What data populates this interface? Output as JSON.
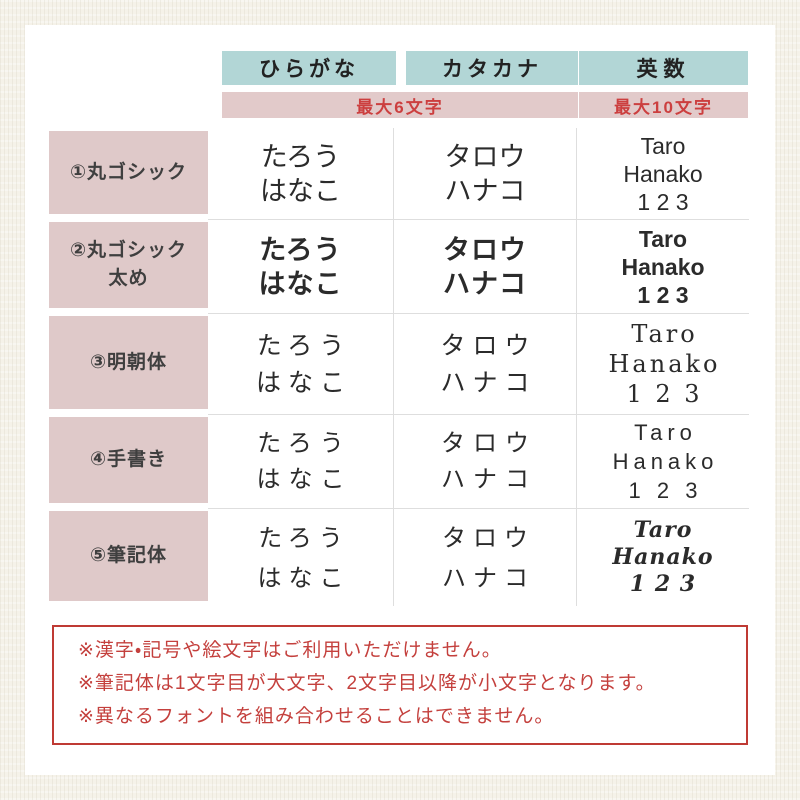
{
  "colors": {
    "frame_background": "#f5f2e9",
    "card_background": "#ffffff",
    "header_blue": "#b2d6d6",
    "limit_band_pink": "#e2caca",
    "row_label_pink": "#dfc9c9",
    "accent_red": "#c4403d",
    "grid_line": "#dedede"
  },
  "table": {
    "column_headers": [
      "ひらがな",
      "カタカナ",
      "英数"
    ],
    "limit_kana": "最大6文字",
    "limit_alnum": "最大10文字",
    "rows": [
      {
        "label": "①丸ゴシック",
        "hiragana1": "たろう",
        "hiragana2": "はなこ",
        "katakana1": "タロウ",
        "katakana2": "ハナコ",
        "latin1": "Taro",
        "latin2": "Hanako",
        "latin3": "1 2 3"
      },
      {
        "label": "②丸ゴシック",
        "label_line2": "太め",
        "hiragana1": "たろう",
        "hiragana2": "はなこ",
        "katakana1": "タロウ",
        "katakana2": "ハナコ",
        "latin1": "Taro",
        "latin2": "Hanako",
        "latin3": "1 2 3"
      },
      {
        "label": "③明朝体",
        "hiragana1": "たろう",
        "hiragana2": "はなこ",
        "katakana1": "タロウ",
        "katakana2": "ハナコ",
        "latin1": "Taro",
        "latin2": "Hanako",
        "latin3": "1 2 3"
      },
      {
        "label": "④手書き",
        "hiragana1": "たろう",
        "hiragana2": "はなこ",
        "katakana1": "タロウ",
        "katakana2": "ハナコ",
        "latin1": "Taro",
        "latin2": "Hanako",
        "latin3": "1 2 3"
      },
      {
        "label": "⑤筆記体",
        "hiragana1": "たろう",
        "hiragana2": "はなこ",
        "katakana1": "タロウ",
        "katakana2": "ハナコ",
        "latin1": "Taro",
        "latin2": "Hanako",
        "latin3": "1 2 3"
      }
    ]
  },
  "notes": {
    "line1": "※漢字・記号や絵文字はご利用いただけません。",
    "line2": "※筆記体は1文字目が大文字、2文字目以降が小文字となります。",
    "line3": "※異なるフォントを組み合わせることはできません。"
  }
}
